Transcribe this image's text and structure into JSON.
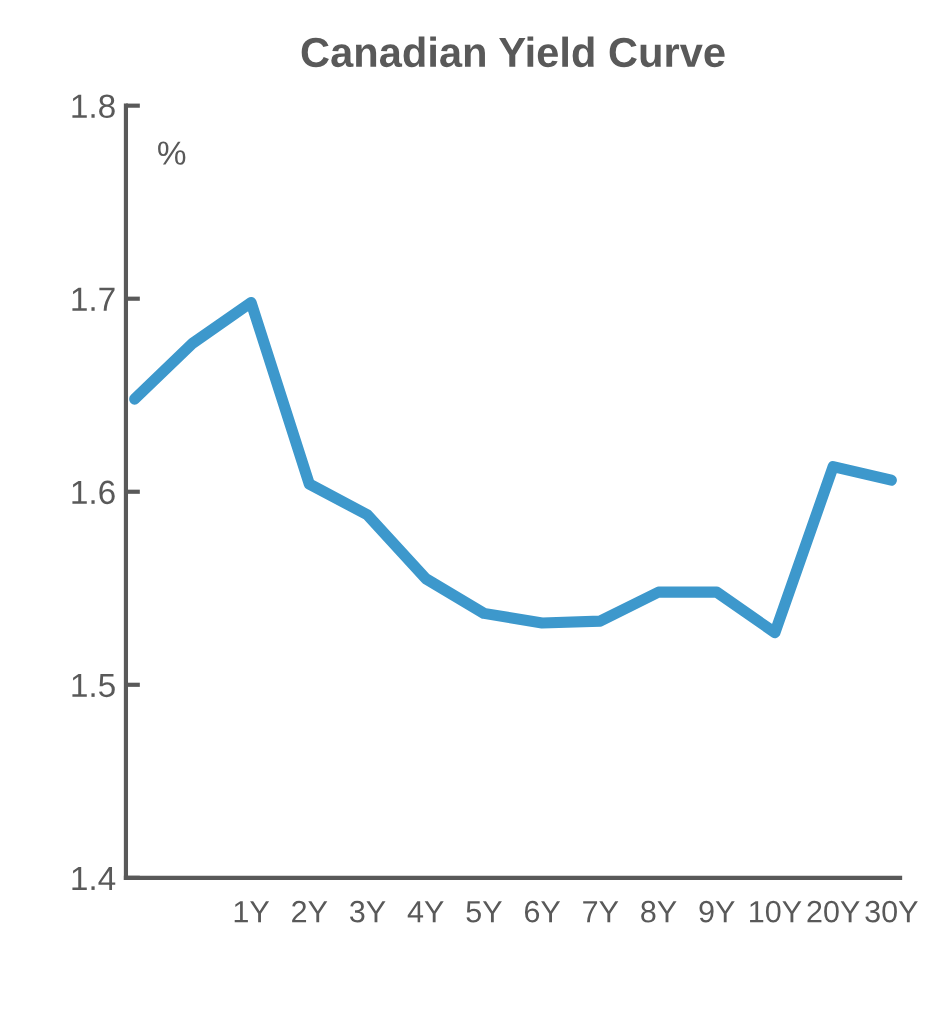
{
  "chart_data": {
    "type": "line",
    "title": "Canadian Yield Curve",
    "annotations": [
      "%"
    ],
    "categories": [
      null,
      null,
      "1Y",
      "2Y",
      "3Y",
      "4Y",
      "5Y",
      "6Y",
      "7Y",
      "8Y",
      "9Y",
      "10Y",
      "20Y",
      "30Y"
    ],
    "series": [
      {
        "color": "#3d98cc",
        "values": [
          1.648,
          1.677,
          1.698,
          1.604,
          1.588,
          1.555,
          1.537,
          1.532,
          1.533,
          1.548,
          1.548,
          1.527,
          1.613,
          1.606
        ]
      }
    ],
    "ylim": [
      1.4,
      1.8
    ],
    "yticks": [
      {
        "value": 1.4,
        "label": "1.4"
      },
      {
        "value": 1.5,
        "label": "1.5"
      },
      {
        "value": 1.6,
        "label": "1.6"
      },
      {
        "value": 1.7,
        "label": "1.7"
      },
      {
        "value": 1.8,
        "label": "1.8"
      }
    ],
    "grid": false,
    "legend": false,
    "marker": "none",
    "line_style": "solid"
  }
}
